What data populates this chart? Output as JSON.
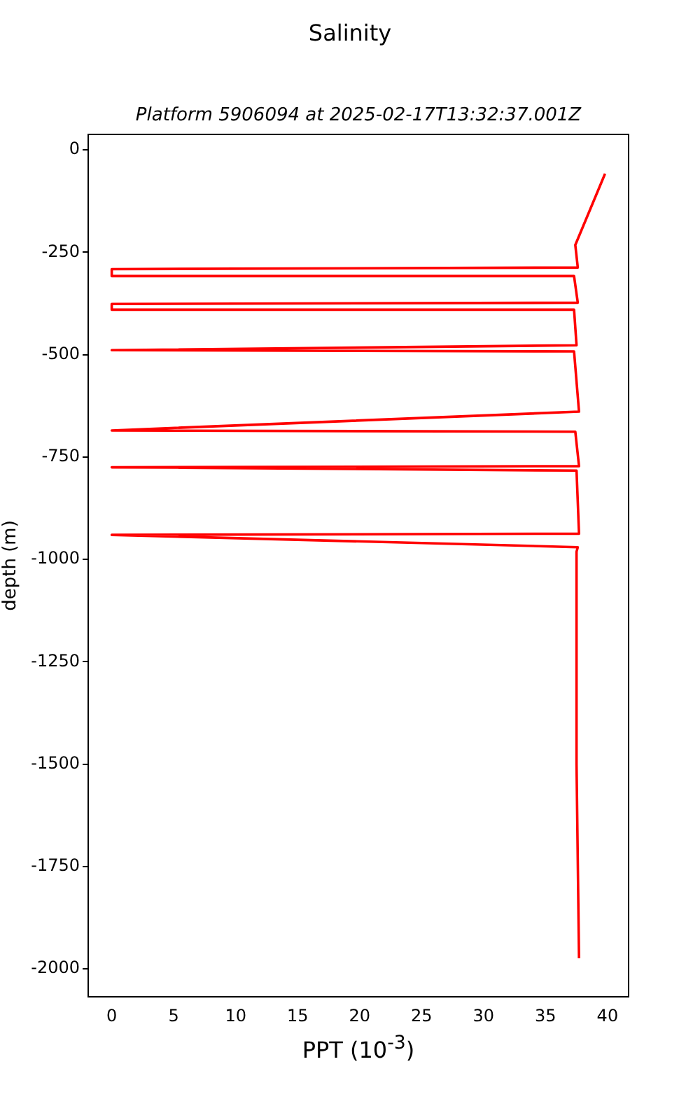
{
  "chart_data": {
    "type": "line",
    "title": "Salinity",
    "subtitle": "Platform 5906094 at 2025-02-17T13:32:37.001Z",
    "xlabel": "PPT (10$^{-3}$)",
    "ylabel": "depth (m)",
    "xlim": [
      -1.9,
      41.7
    ],
    "xticks": [
      0,
      5,
      10,
      15,
      20,
      25,
      30,
      35,
      40
    ],
    "ylim": [
      -2068,
      38
    ],
    "yticks": [
      0,
      -250,
      -500,
      -750,
      -1000,
      -1250,
      -1500,
      -1750,
      -2000
    ],
    "grid": false,
    "legend": false,
    "marker": "none",
    "line_style": "solid",
    "series": [
      {
        "color": "#ff0000",
        "x": [
          39.8,
          37.4,
          37.6,
          0,
          0,
          37.3,
          37.6,
          0,
          0,
          37.3,
          37.5,
          0,
          37.3,
          37.7,
          0,
          37.4,
          37.7,
          0,
          37.5,
          37.7,
          0,
          37.6,
          37.5,
          37.5,
          37.7
        ],
        "values": [
          -58,
          -232,
          -287,
          -291,
          -308,
          -308,
          -373,
          -376,
          -390,
          -390,
          -477,
          -489,
          -492,
          -639,
          -685,
          -688,
          -772,
          -775,
          -783,
          -937,
          -940,
          -970,
          -981,
          -1500,
          -1974
        ]
      }
    ]
  }
}
